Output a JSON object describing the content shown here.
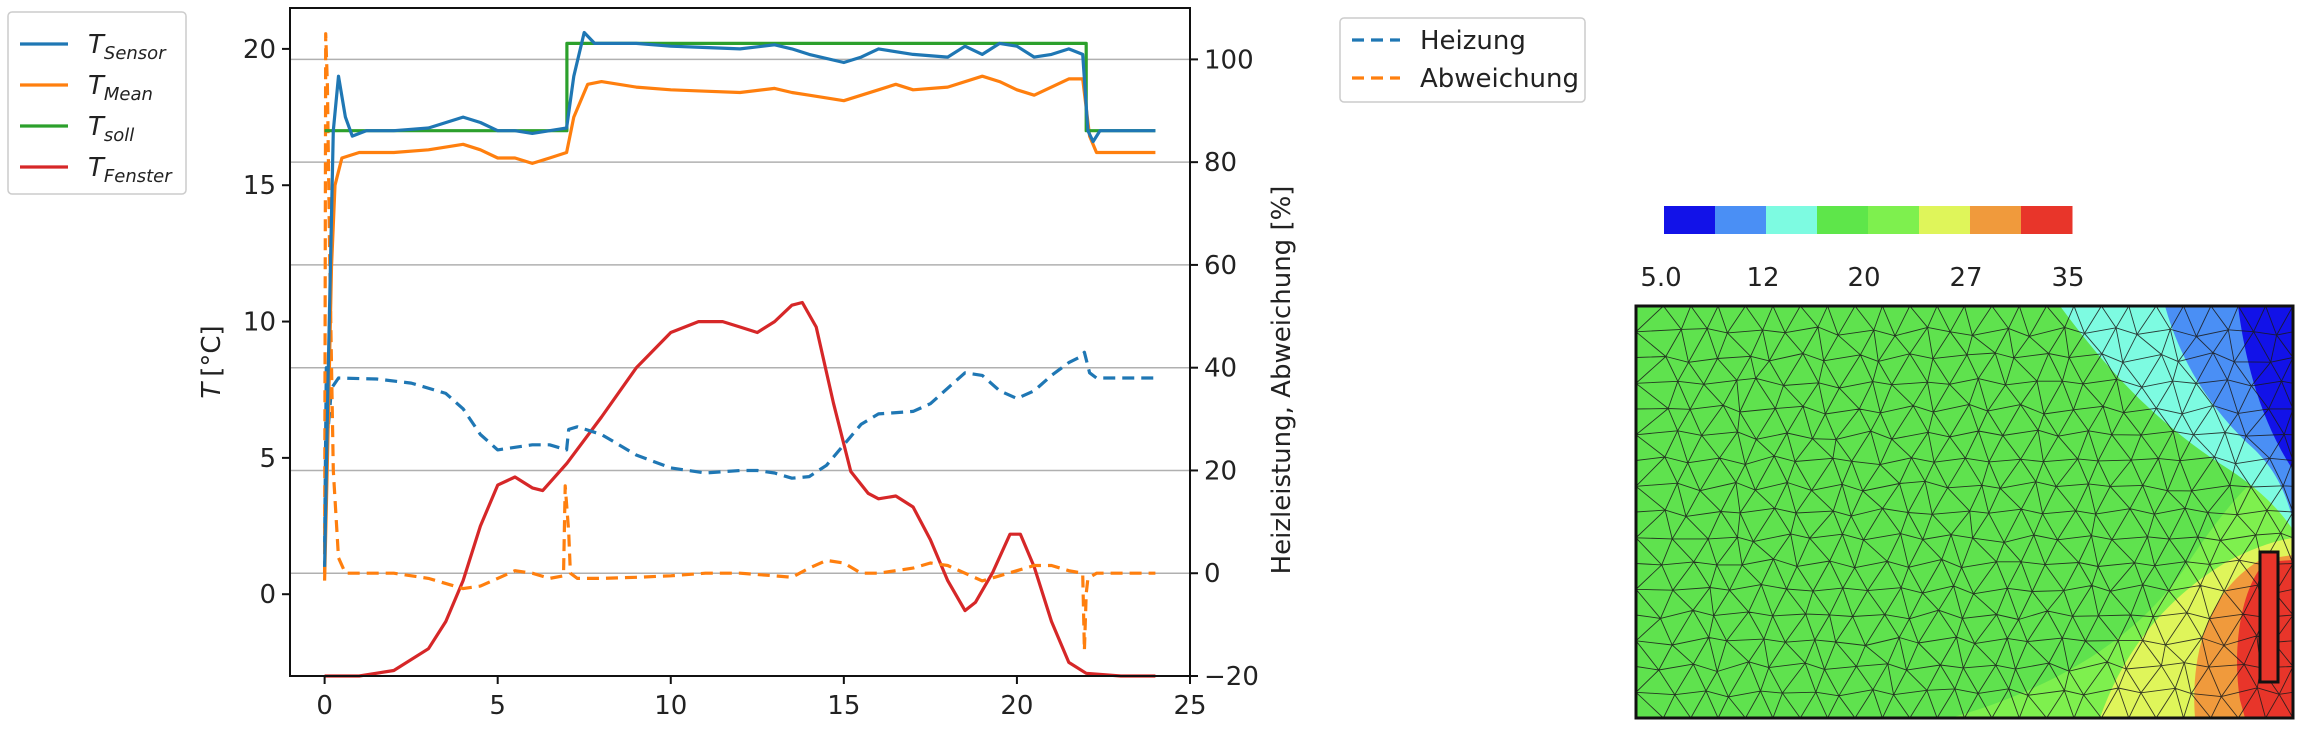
{
  "chart_data": [
    {
      "type": "line",
      "x_axis": {
        "lim": [
          -1,
          25
        ],
        "ticks": [
          0,
          5,
          10,
          15,
          20,
          25
        ]
      },
      "y_left": {
        "label": "T [°C]",
        "label_italic_part": "T",
        "label_unit": "[°C]",
        "lim": [
          -3,
          21.5
        ],
        "ticks": [
          0,
          5,
          10,
          15,
          20
        ]
      },
      "y_right": {
        "label": "Heizleistung, Abweichung [%]",
        "lim": [
          -20,
          110
        ],
        "ticks": [
          -20,
          0,
          20,
          40,
          60,
          80,
          100
        ]
      },
      "grid": "horizontal lines at right-axis ticks",
      "legend_left": [
        {
          "base": "T",
          "sub": "Sensor",
          "color": "#1f77b4",
          "style": "solid"
        },
        {
          "base": "T",
          "sub": "Mean",
          "color": "#ff7f0e",
          "style": "solid"
        },
        {
          "base": "T",
          "sub": "soll",
          "color": "#2ca02c",
          "style": "solid"
        },
        {
          "base": "T",
          "sub": "Fenster",
          "color": "#d62728",
          "style": "solid"
        }
      ],
      "legend_right": [
        {
          "label": "Heizung",
          "color": "#1f77b4",
          "style": "dashed"
        },
        {
          "label": "Abweichung",
          "color": "#ff7f0e",
          "style": "dashed"
        }
      ],
      "series": [
        {
          "name": "T_Sensor",
          "axis": "left",
          "color": "#1f77b4",
          "dash": false,
          "points": [
            [
              0,
              1
            ],
            [
              0.1,
              8
            ],
            [
              0.25,
              17
            ],
            [
              0.4,
              19
            ],
            [
              0.6,
              17.5
            ],
            [
              0.8,
              16.8
            ],
            [
              1.2,
              17
            ],
            [
              2,
              17
            ],
            [
              3,
              17.1
            ],
            [
              4,
              17.5
            ],
            [
              4.5,
              17.3
            ],
            [
              5,
              17
            ],
            [
              5.5,
              17
            ],
            [
              6,
              16.9
            ],
            [
              6.5,
              17
            ],
            [
              6.99,
              17.1
            ],
            [
              7.2,
              19
            ],
            [
              7.5,
              20.6
            ],
            [
              7.8,
              20.2
            ],
            [
              9,
              20.2
            ],
            [
              10,
              20.1
            ],
            [
              11,
              20.05
            ],
            [
              12,
              20
            ],
            [
              13,
              20.15
            ],
            [
              13.5,
              20
            ],
            [
              14,
              19.8
            ],
            [
              15,
              19.5
            ],
            [
              15.5,
              19.7
            ],
            [
              16,
              20
            ],
            [
              17,
              19.8
            ],
            [
              18,
              19.7
            ],
            [
              18.5,
              20.1
            ],
            [
              19,
              19.8
            ],
            [
              19.5,
              20.2
            ],
            [
              20,
              20.1
            ],
            [
              20.5,
              19.7
            ],
            [
              21,
              19.8
            ],
            [
              21.5,
              20
            ],
            [
              21.9,
              19.8
            ],
            [
              22.05,
              17
            ],
            [
              22.2,
              16.6
            ],
            [
              22.4,
              17
            ],
            [
              23,
              17
            ],
            [
              24,
              17
            ]
          ]
        },
        {
          "name": "T_Mean",
          "axis": "left",
          "color": "#ff7f0e",
          "dash": false,
          "points": [
            [
              0,
              0.5
            ],
            [
              0.1,
              6
            ],
            [
              0.2,
              12
            ],
            [
              0.3,
              15
            ],
            [
              0.5,
              16
            ],
            [
              1,
              16.2
            ],
            [
              2,
              16.2
            ],
            [
              3,
              16.3
            ],
            [
              4,
              16.5
            ],
            [
              4.5,
              16.3
            ],
            [
              5,
              16
            ],
            [
              5.5,
              16
            ],
            [
              6,
              15.8
            ],
            [
              6.5,
              16
            ],
            [
              6.99,
              16.2
            ],
            [
              7.2,
              17.5
            ],
            [
              7.6,
              18.7
            ],
            [
              8,
              18.8
            ],
            [
              9,
              18.6
            ],
            [
              10,
              18.5
            ],
            [
              11,
              18.45
            ],
            [
              12,
              18.4
            ],
            [
              13,
              18.55
            ],
            [
              13.5,
              18.4
            ],
            [
              14,
              18.3
            ],
            [
              15,
              18.1
            ],
            [
              16,
              18.5
            ],
            [
              16.5,
              18.7
            ],
            [
              17,
              18.5
            ],
            [
              18,
              18.6
            ],
            [
              19,
              19
            ],
            [
              19.5,
              18.8
            ],
            [
              20,
              18.5
            ],
            [
              20.5,
              18.3
            ],
            [
              21,
              18.6
            ],
            [
              21.5,
              18.9
            ],
            [
              21.9,
              18.9
            ],
            [
              22.1,
              16.8
            ],
            [
              22.3,
              16.2
            ],
            [
              23,
              16.2
            ],
            [
              24,
              16.2
            ]
          ]
        },
        {
          "name": "T_soll",
          "axis": "left",
          "color": "#2ca02c",
          "dash": false,
          "points": [
            [
              0,
              17
            ],
            [
              7,
              17
            ],
            [
              7,
              20.2
            ],
            [
              22,
              20.2
            ],
            [
              22,
              17
            ],
            [
              24,
              17
            ]
          ]
        },
        {
          "name": "T_Fenster",
          "axis": "left",
          "color": "#d62728",
          "dash": false,
          "points": [
            [
              0,
              -3
            ],
            [
              1,
              -3
            ],
            [
              2,
              -2.8
            ],
            [
              3,
              -2
            ],
            [
              3.5,
              -1
            ],
            [
              4,
              0.5
            ],
            [
              4.5,
              2.5
            ],
            [
              5,
              4
            ],
            [
              5.5,
              4.3
            ],
            [
              6,
              3.9
            ],
            [
              6.3,
              3.8
            ],
            [
              7,
              4.8
            ],
            [
              8,
              6.5
            ],
            [
              9,
              8.3
            ],
            [
              10,
              9.6
            ],
            [
              10.8,
              10
            ],
            [
              11.5,
              10
            ],
            [
              12,
              9.8
            ],
            [
              12.5,
              9.6
            ],
            [
              13,
              10
            ],
            [
              13.5,
              10.6
            ],
            [
              13.8,
              10.7
            ],
            [
              14.2,
              9.8
            ],
            [
              14.7,
              7
            ],
            [
              15.2,
              4.5
            ],
            [
              15.7,
              3.7
            ],
            [
              16,
              3.5
            ],
            [
              16.5,
              3.6
            ],
            [
              17,
              3.2
            ],
            [
              17.5,
              2
            ],
            [
              18,
              0.5
            ],
            [
              18.5,
              -0.6
            ],
            [
              18.8,
              -0.3
            ],
            [
              19.3,
              0.8
            ],
            [
              19.8,
              2.2
            ],
            [
              20.1,
              2.2
            ],
            [
              20.5,
              1
            ],
            [
              21,
              -1
            ],
            [
              21.5,
              -2.5
            ],
            [
              22,
              -2.9
            ],
            [
              23,
              -3
            ],
            [
              24,
              -3
            ]
          ]
        },
        {
          "name": "Heizung",
          "axis": "right",
          "color": "#1f77b4",
          "dash": true,
          "points": [
            [
              0,
              5
            ],
            [
              0.05,
              40
            ],
            [
              0.1,
              28
            ],
            [
              0.2,
              36
            ],
            [
              0.4,
              38
            ],
            [
              1.5,
              37.8
            ],
            [
              2.5,
              37
            ],
            [
              3.5,
              35
            ],
            [
              4,
              32
            ],
            [
              4.5,
              27
            ],
            [
              5,
              24
            ],
            [
              5.5,
              24.5
            ],
            [
              6,
              25
            ],
            [
              6.5,
              25
            ],
            [
              6.99,
              24
            ],
            [
              7.05,
              28
            ],
            [
              7.3,
              28.5
            ],
            [
              8,
              27
            ],
            [
              9,
              23
            ],
            [
              10,
              20.5
            ],
            [
              11,
              19.5
            ],
            [
              12,
              20
            ],
            [
              12.5,
              20
            ],
            [
              13,
              19.5
            ],
            [
              13.5,
              18.5
            ],
            [
              14,
              18.8
            ],
            [
              14.5,
              21
            ],
            [
              15,
              25
            ],
            [
              15.5,
              29
            ],
            [
              16,
              31
            ],
            [
              17,
              31.5
            ],
            [
              17.5,
              33
            ],
            [
              18,
              36
            ],
            [
              18.5,
              39
            ],
            [
              19,
              38.5
            ],
            [
              19.5,
              35.5
            ],
            [
              20,
              34
            ],
            [
              20.5,
              35.5
            ],
            [
              21,
              38.5
            ],
            [
              21.5,
              41
            ],
            [
              21.8,
              42
            ],
            [
              21.95,
              43
            ],
            [
              22.1,
              39
            ],
            [
              22.3,
              38
            ],
            [
              23,
              38
            ],
            [
              24,
              38
            ]
          ]
        },
        {
          "name": "Abweichung",
          "axis": "right",
          "color": "#ff7f0e",
          "dash": true,
          "points": [
            [
              0,
              0
            ],
            [
              0.03,
              105
            ],
            [
              0.08,
              95
            ],
            [
              0.15,
              60
            ],
            [
              0.25,
              20
            ],
            [
              0.4,
              3
            ],
            [
              0.6,
              0
            ],
            [
              2,
              0
            ],
            [
              3,
              -1
            ],
            [
              4,
              -3
            ],
            [
              4.5,
              -2.5
            ],
            [
              5,
              -1
            ],
            [
              5.5,
              0.5
            ],
            [
              6,
              0
            ],
            [
              6.5,
              -1
            ],
            [
              6.9,
              -0.5
            ],
            [
              6.95,
              17
            ],
            [
              7.05,
              8
            ],
            [
              7.1,
              0
            ],
            [
              7.3,
              -1
            ],
            [
              8,
              -1
            ],
            [
              9,
              -0.8
            ],
            [
              10,
              -0.5
            ],
            [
              11,
              0
            ],
            [
              12,
              0
            ],
            [
              13,
              -0.5
            ],
            [
              13.5,
              -0.8
            ],
            [
              14,
              1
            ],
            [
              14.5,
              2.5
            ],
            [
              15,
              2
            ],
            [
              15.5,
              0
            ],
            [
              16,
              0
            ],
            [
              17,
              1
            ],
            [
              17.5,
              2
            ],
            [
              18,
              1.5
            ],
            [
              18.5,
              0
            ],
            [
              19,
              -1.5
            ],
            [
              19.5,
              -0.5
            ],
            [
              20,
              0.5
            ],
            [
              20.5,
              1.5
            ],
            [
              21,
              1.5
            ],
            [
              21.5,
              0.5
            ],
            [
              21.9,
              0
            ],
            [
              21.95,
              -15
            ],
            [
              22,
              -4
            ],
            [
              22.05,
              -1
            ],
            [
              22.3,
              0
            ],
            [
              23,
              0
            ],
            [
              24,
              0
            ]
          ]
        }
      ]
    },
    {
      "type": "heatmap",
      "colorbar": {
        "colors": [
          "#1212e8",
          "#4a8ff5",
          "#7dfbe1",
          "#5ee64a",
          "#7ef04e",
          "#dff55a",
          "#f09a3c",
          "#e8352a"
        ],
        "tick_labels": [
          "5.0",
          "12",
          "20",
          "27",
          "35"
        ]
      }
    }
  ]
}
